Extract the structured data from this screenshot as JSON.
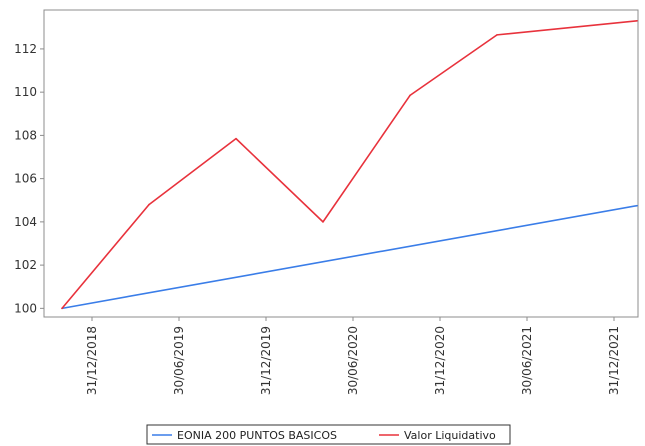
{
  "chart_data": {
    "type": "line",
    "x": [
      "31/12/2018",
      "30/06/2019",
      "31/12/2019",
      "30/06/2020",
      "31/12/2020",
      "30/06/2021",
      "31/12/2021"
    ],
    "ylim": [
      99.6,
      113.8
    ],
    "yticks": [
      100,
      102,
      104,
      106,
      108,
      110,
      112
    ],
    "grid": false,
    "legend_position": "bottom",
    "series": [
      {
        "name": "EONIA 200 PUNTOS BASICOS",
        "color": "#3a7de8",
        "points": [
          {
            "x": "31/12/2018",
            "y": 100.0
          },
          {
            "x": "31/12/2021",
            "y": 104.75
          }
        ]
      },
      {
        "name": "Valor Liquidativo",
        "color": "#e8323c",
        "points": [
          {
            "x": "31/12/2018",
            "y": 100.0
          },
          {
            "x": "30/06/2019",
            "y": 104.8
          },
          {
            "x": "31/12/2019",
            "y": 107.85
          },
          {
            "x": "30/06/2020",
            "y": 104.0
          },
          {
            "x": "31/12/2020",
            "y": 109.85
          },
          {
            "x": "30/06/2021",
            "y": 112.65
          },
          {
            "x": "31/12/2021",
            "y": 113.3
          }
        ]
      }
    ]
  }
}
